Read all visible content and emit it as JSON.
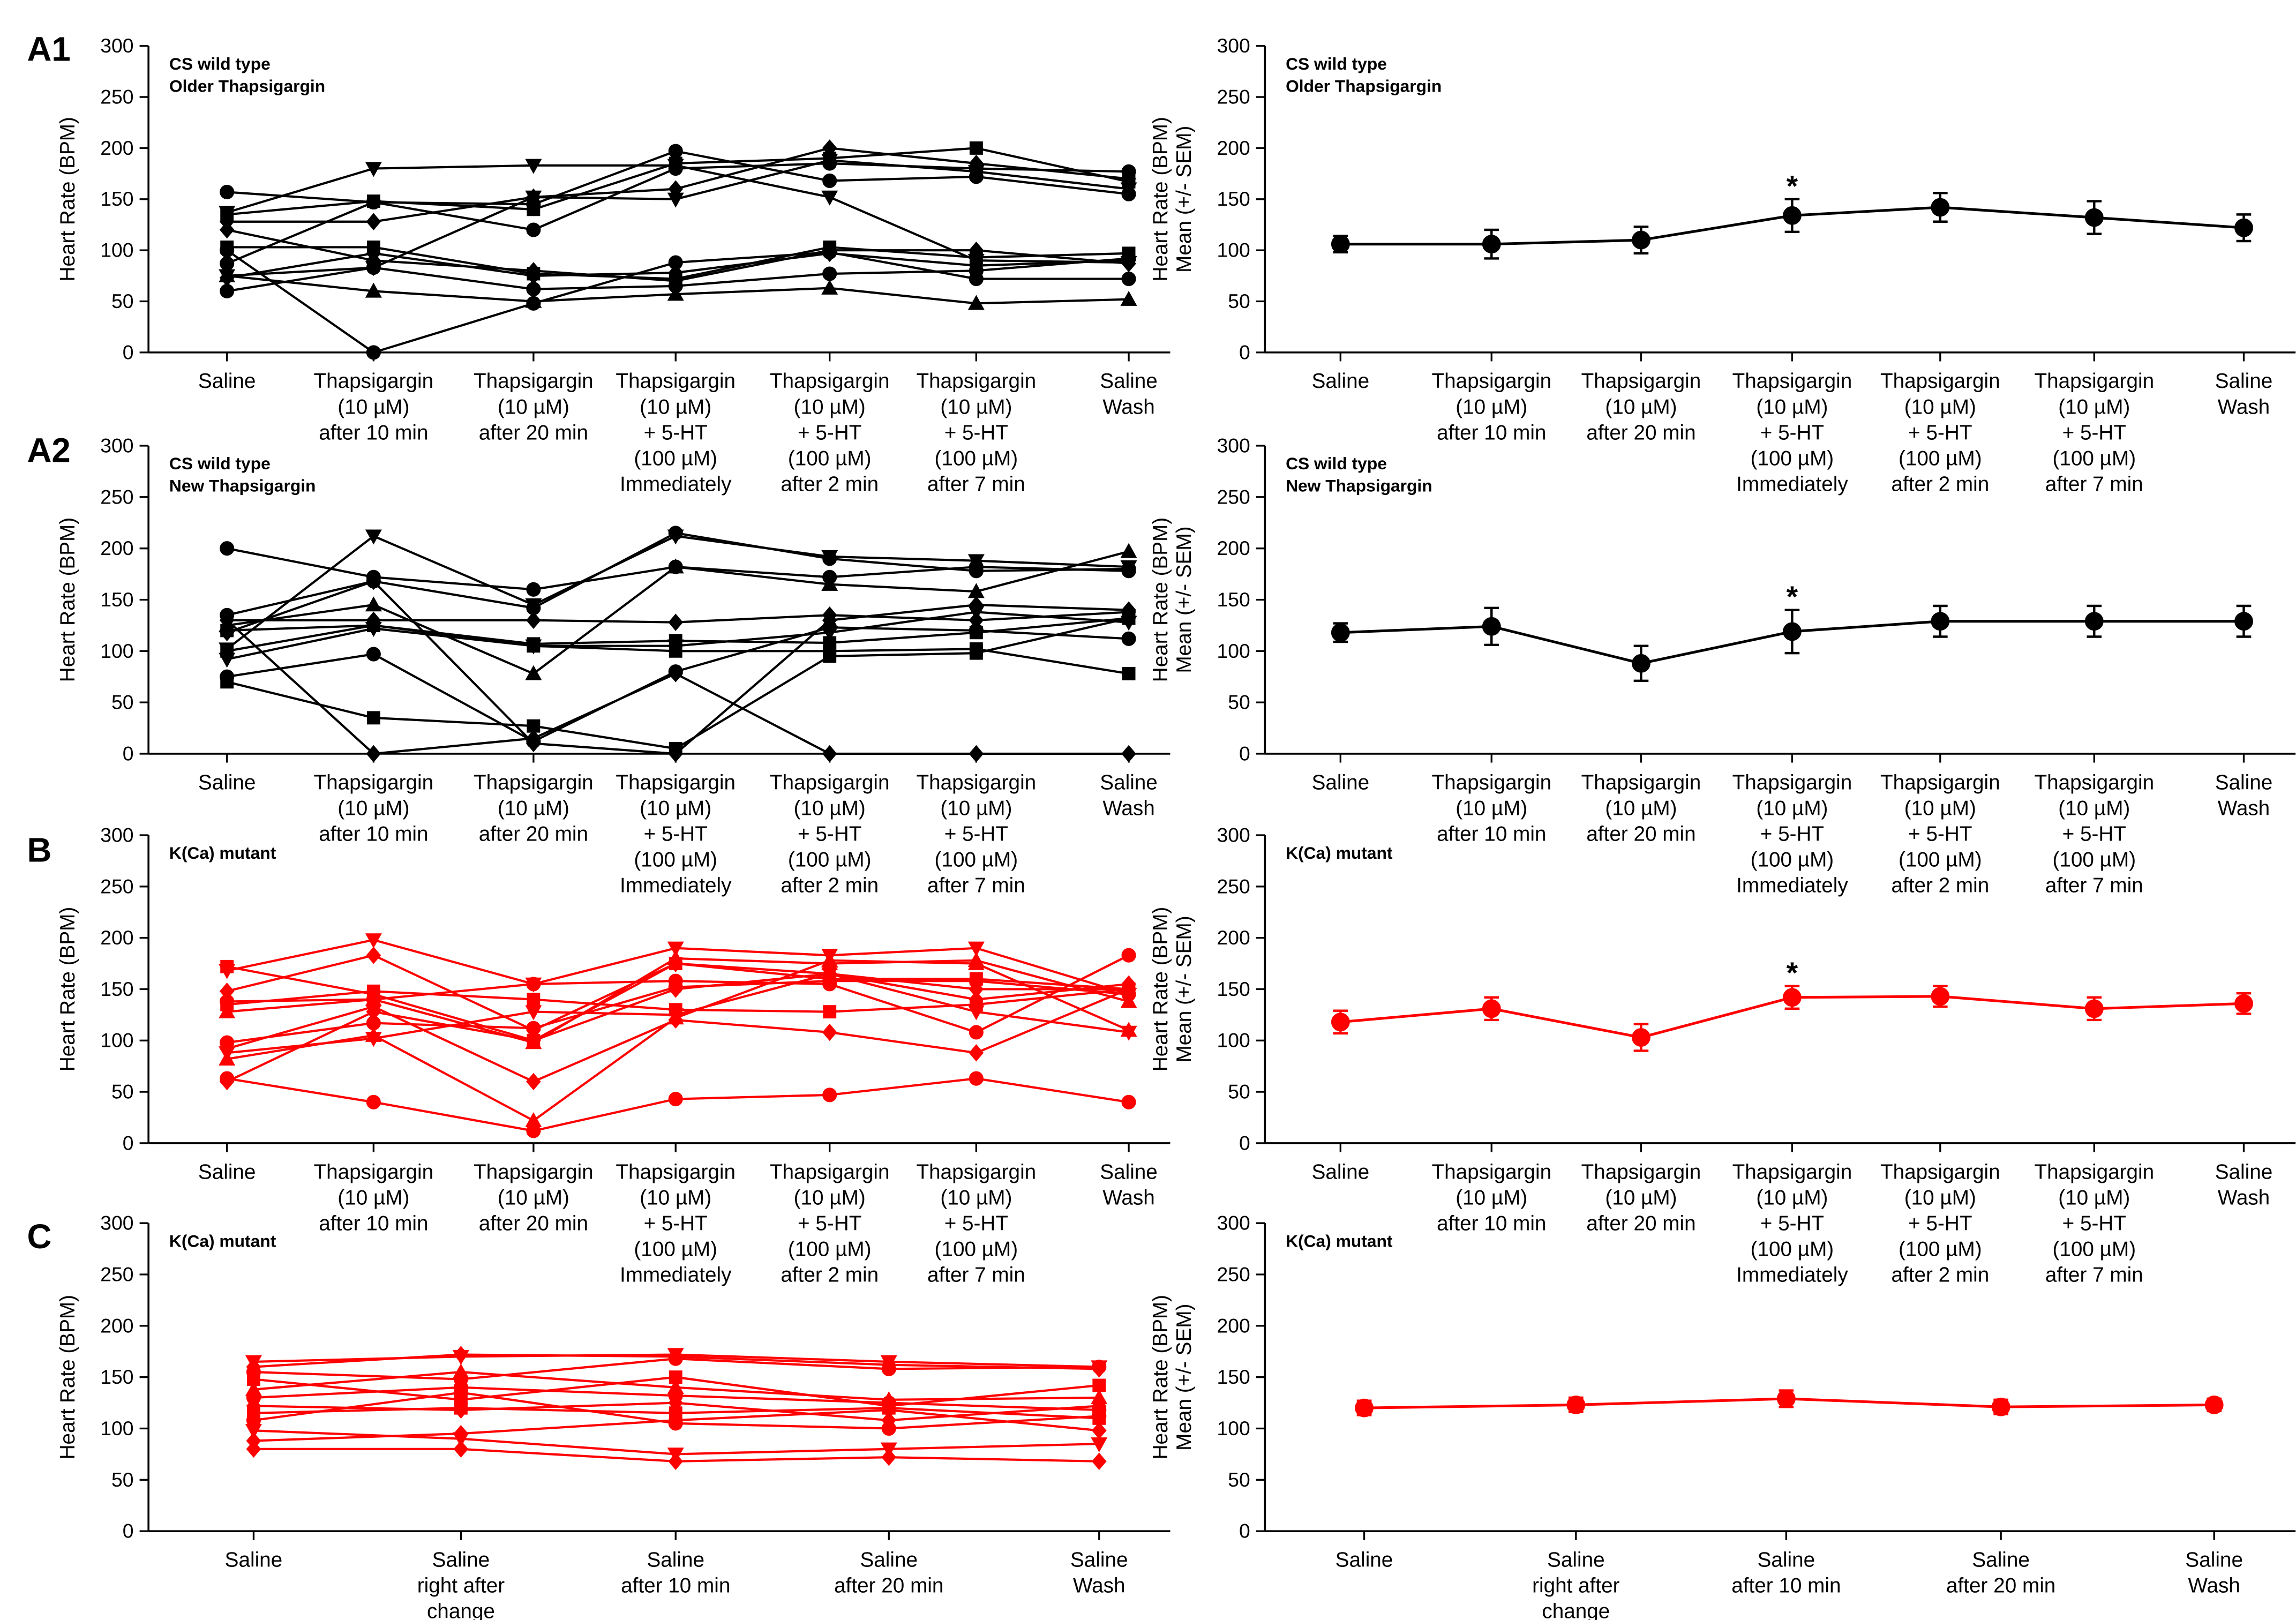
{
  "figure": {
    "ylabel_indiv": "Heart Rate (BPM)",
    "ylabel_mean_line1": "Heart Rate (BPM)",
    "ylabel_mean_line2": "Mean (+/- SEM)"
  },
  "colors": {
    "black": "#000000",
    "red": "#ff0000"
  },
  "chart_data": [
    {
      "panel": "A1",
      "side": "individual",
      "type": "line",
      "color": "black",
      "title": "CS wild type",
      "subtitle": "Older Thapsigargin",
      "ylabel": "Heart Rate (BPM)",
      "ylim": [
        0,
        300
      ],
      "yticks": [
        0,
        50,
        100,
        150,
        200,
        250,
        300
      ],
      "categories": [
        [
          "Saline"
        ],
        [
          "Thapsigargin",
          "(10 µM)",
          "after 10 min"
        ],
        [
          "Thapsigargin",
          "(10 µM)",
          "after 20 min"
        ],
        [
          "Thapsigargin",
          "(10 µM)",
          "+ 5-HT",
          "(100 µM)",
          "Immediately"
        ],
        [
          "Thapsigargin",
          "(10 µM)",
          "+ 5-HT",
          "(100 µM)",
          "after 2 min"
        ],
        [
          "Thapsigargin",
          "(10 µM)",
          "+ 5-HT",
          "(100 µM)",
          "after 7 min"
        ],
        [
          "Saline",
          "Wash"
        ]
      ],
      "series": [
        {
          "marker": "circle",
          "values": [
            157,
            147,
            145,
            197,
            168,
            172,
            155
          ]
        },
        {
          "marker": "triangle-down",
          "values": [
            137,
            180,
            183,
            183,
            152,
            90,
            88
          ]
        },
        {
          "marker": "diamond",
          "values": [
            128,
            128,
            152,
            160,
            200,
            185,
            170
          ]
        },
        {
          "marker": "square",
          "values": [
            135,
            148,
            140,
            185,
            190,
            200,
            167
          ]
        },
        {
          "marker": "circle",
          "values": [
            87,
            147,
            120,
            180,
            185,
            180,
            177
          ]
        },
        {
          "marker": "triangle-down",
          "values": [
            75,
            83,
            152,
            150,
            188,
            177,
            160
          ]
        },
        {
          "marker": "diamond",
          "values": [
            120,
            90,
            80,
            70,
            100,
            100,
            87
          ]
        },
        {
          "marker": "square",
          "values": [
            103,
            103,
            77,
            72,
            103,
            93,
            97
          ]
        },
        {
          "marker": "circle",
          "values": [
            100,
            0,
            48,
            88,
            98,
            72,
            72
          ]
        },
        {
          "marker": "triangle-up",
          "values": [
            75,
            60,
            50,
            57,
            63,
            48,
            52
          ]
        },
        {
          "marker": "circle",
          "values": [
            60,
            83,
            62,
            65,
            77,
            80,
            92
          ]
        },
        {
          "marker": "diamond",
          "values": [
            73,
            97,
            75,
            78,
            97,
            85,
            90
          ]
        }
      ]
    },
    {
      "panel": "A1",
      "side": "mean",
      "type": "line",
      "color": "black",
      "title": "CS wild type",
      "subtitle": "Older Thapsigargin",
      "ylim": [
        0,
        300
      ],
      "yticks": [
        0,
        50,
        100,
        150,
        200,
        250,
        300
      ],
      "categories": [
        [
          "Saline"
        ],
        [
          "Thapsigargin",
          "(10 µM)",
          "after 10 min"
        ],
        [
          "Thapsigargin",
          "(10 µM)",
          "after 20 min"
        ],
        [
          "Thapsigargin",
          "(10 µM)",
          "+ 5-HT",
          "(100 µM)",
          "Immediately"
        ],
        [
          "Thapsigargin",
          "(10 µM)",
          "+ 5-HT",
          "(100 µM)",
          "after 2 min"
        ],
        [
          "Thapsigargin",
          "(10 µM)",
          "+ 5-HT",
          "(100 µM)",
          "after 7 min"
        ],
        [
          "Saline",
          "Wash"
        ]
      ],
      "means": [
        106,
        106,
        110,
        134,
        142,
        132,
        122
      ],
      "sem": [
        8,
        14,
        13,
        16,
        14,
        16,
        13
      ],
      "significance": [
        {
          "index": 3,
          "label": "*"
        }
      ]
    },
    {
      "panel": "A2",
      "side": "individual",
      "type": "line",
      "color": "black",
      "title": "CS wild type",
      "subtitle": "New Thapsigargin",
      "ylabel": "Heart Rate (BPM)",
      "ylim": [
        0,
        300
      ],
      "yticks": [
        0,
        50,
        100,
        150,
        200,
        250,
        300
      ],
      "categories": [
        [
          "Saline"
        ],
        [
          "Thapsigargin",
          "(10 µM)",
          "after 10 min"
        ],
        [
          "Thapsigargin",
          "(10 µM)",
          "after 20 min"
        ],
        [
          "Thapsigargin",
          "(10 µM)",
          "+ 5-HT",
          "(100 µM)",
          "Immediately"
        ],
        [
          "Thapsigargin",
          "(10 µM)",
          "+ 5-HT",
          "(100 µM)",
          "after 2 min"
        ],
        [
          "Thapsigargin",
          "(10 µM)",
          "+ 5-HT",
          "(100 µM)",
          "after 7 min"
        ],
        [
          "Saline",
          "Wash"
        ]
      ],
      "series": [
        {
          "marker": "circle",
          "values": [
            200,
            172,
            160,
            182,
            172,
            182,
            178
          ]
        },
        {
          "marker": "triangle-down",
          "values": [
            102,
            212,
            145,
            212,
            192,
            188,
            182
          ]
        },
        {
          "marker": "circle",
          "values": [
            135,
            168,
            142,
            215,
            190,
            178,
            180
          ]
        },
        {
          "marker": "triangle-up",
          "values": [
            125,
            145,
            78,
            182,
            165,
            158,
            197
          ]
        },
        {
          "marker": "diamond",
          "values": [
            130,
            130,
            130,
            128,
            135,
            130,
            138
          ]
        },
        {
          "marker": "square",
          "values": [
            100,
            125,
            105,
            100,
            100,
            102,
            78
          ]
        },
        {
          "marker": "circle",
          "values": [
            75,
            97,
            12,
            80,
            123,
            120,
            112
          ]
        },
        {
          "marker": "square",
          "values": [
            70,
            35,
            27,
            5,
            95,
            98,
            132
          ]
        },
        {
          "marker": "diamond",
          "values": [
            130,
            0,
            15,
            78,
            0,
            0,
            0
          ]
        },
        {
          "marker": "triangle-down",
          "values": [
            92,
            122,
            105,
            105,
            118,
            138,
            128
          ]
        },
        {
          "marker": "diamond",
          "values": [
            118,
            168,
            10,
            0,
            130,
            145,
            140
          ]
        },
        {
          "marker": "square",
          "values": [
            120,
            125,
            107,
            110,
            108,
            118,
            132
          ]
        }
      ]
    },
    {
      "panel": "A2",
      "side": "mean",
      "type": "line",
      "color": "black",
      "title": "CS wild type",
      "subtitle": "New Thapsigargin",
      "ylim": [
        0,
        300
      ],
      "yticks": [
        0,
        50,
        100,
        150,
        200,
        250,
        300
      ],
      "categories": [
        [
          "Saline"
        ],
        [
          "Thapsigargin",
          "(10 µM)",
          "after 10 min"
        ],
        [
          "Thapsigargin",
          "(10 µM)",
          "after 20 min"
        ],
        [
          "Thapsigargin",
          "(10 µM)",
          "+ 5-HT",
          "(100 µM)",
          "Immediately"
        ],
        [
          "Thapsigargin",
          "(10 µM)",
          "+ 5-HT",
          "(100 µM)",
          "after 2 min"
        ],
        [
          "Thapsigargin",
          "(10 µM)",
          "+ 5-HT",
          "(100 µM)",
          "after 7 min"
        ],
        [
          "Saline",
          "Wash"
        ]
      ],
      "means": [
        118,
        124,
        88,
        119,
        129,
        129,
        129
      ],
      "sem": [
        9,
        18,
        17,
        21,
        15,
        15,
        15
      ],
      "significance": [
        {
          "index": 3,
          "label": "*"
        }
      ]
    },
    {
      "panel": "B",
      "side": "individual",
      "type": "line",
      "color": "red",
      "title": "K(Ca) mutant",
      "subtitle": "",
      "ylabel": "Heart Rate (BPM)",
      "ylim": [
        0,
        300
      ],
      "yticks": [
        0,
        50,
        100,
        150,
        200,
        250,
        300
      ],
      "categories": [
        [
          "Saline"
        ],
        [
          "Thapsigargin",
          "(10 µM)",
          "after 10 min"
        ],
        [
          "Thapsigargin",
          "(10 µM)",
          "after 20 min"
        ],
        [
          "Thapsigargin",
          "(10 µM)",
          "+ 5-HT",
          "(100 µM)",
          "Immediately"
        ],
        [
          "Thapsigargin",
          "(10 µM)",
          "+ 5-HT",
          "(100 µM)",
          "after 2 min"
        ],
        [
          "Thapsigargin",
          "(10 µM)",
          "+ 5-HT",
          "(100 µM)",
          "after 7 min"
        ],
        [
          "Saline",
          "Wash"
        ]
      ],
      "series": [
        {
          "marker": "square",
          "values": [
            172,
            145,
            100,
            175,
            160,
            160,
            150
          ]
        },
        {
          "marker": "triangle-down",
          "values": [
            168,
            198,
            155,
            190,
            183,
            190,
            145
          ]
        },
        {
          "marker": "diamond",
          "values": [
            148,
            183,
            110,
            175,
            165,
            140,
            155
          ]
        },
        {
          "marker": "circle",
          "values": [
            138,
            140,
            155,
            158,
            155,
            108,
            183
          ]
        },
        {
          "marker": "triangle-up",
          "values": [
            128,
            140,
            98,
            180,
            175,
            178,
            138
          ]
        },
        {
          "marker": "square",
          "values": [
            135,
            148,
            140,
            130,
            128,
            135,
            150
          ]
        },
        {
          "marker": "diamond",
          "values": [
            92,
            133,
            60,
            120,
            108,
            88,
            150
          ]
        },
        {
          "marker": "circle",
          "values": [
            98,
            117,
            112,
            152,
            158,
            158,
            145
          ]
        },
        {
          "marker": "triangle-up",
          "values": [
            82,
            105,
            22,
            122,
            178,
            175,
            110
          ]
        },
        {
          "marker": "circle",
          "values": [
            63,
            40,
            12,
            43,
            47,
            63,
            40
          ]
        },
        {
          "marker": "diamond",
          "values": [
            60,
            128,
            100,
            150,
            165,
            150,
            150
          ]
        },
        {
          "marker": "triangle-down",
          "values": [
            88,
            102,
            128,
            125,
            165,
            128,
            108
          ]
        }
      ]
    },
    {
      "panel": "B",
      "side": "mean",
      "type": "line",
      "color": "red",
      "title": "K(Ca) mutant",
      "subtitle": "",
      "ylim": [
        0,
        300
      ],
      "yticks": [
        0,
        50,
        100,
        150,
        200,
        250,
        300
      ],
      "categories": [
        [
          "Saline"
        ],
        [
          "Thapsigargin",
          "(10 µM)",
          "after 10 min"
        ],
        [
          "Thapsigargin",
          "(10 µM)",
          "after 20 min"
        ],
        [
          "Thapsigargin",
          "(10 µM)",
          "+ 5-HT",
          "(100 µM)",
          "Immediately"
        ],
        [
          "Thapsigargin",
          "(10 µM)",
          "+ 5-HT",
          "(100 µM)",
          "after 2 min"
        ],
        [
          "Thapsigargin",
          "(10 µM)",
          "+ 5-HT",
          "(100 µM)",
          "after 7 min"
        ],
        [
          "Saline",
          "Wash"
        ]
      ],
      "means": [
        118,
        131,
        103,
        142,
        143,
        131,
        136
      ],
      "sem": [
        11,
        11,
        13,
        11,
        10,
        11,
        10
      ],
      "significance": [
        {
          "index": 3,
          "label": "*"
        }
      ]
    },
    {
      "panel": "C",
      "side": "individual",
      "type": "line",
      "color": "red",
      "title": "K(Ca) mutant",
      "subtitle": "",
      "ylabel": "Heart Rate (BPM)",
      "ylim": [
        0,
        300
      ],
      "yticks": [
        0,
        50,
        100,
        150,
        200,
        250,
        300
      ],
      "categories": [
        [
          "Saline"
        ],
        [
          "Saline",
          "right after",
          "change"
        ],
        [
          "Saline",
          "after 10 min"
        ],
        [
          "Saline",
          "after 20 min"
        ],
        [
          "Saline",
          "Wash"
        ]
      ],
      "series": [
        {
          "marker": "triangle-down",
          "values": [
            165,
            170,
            172,
            165,
            160
          ]
        },
        {
          "marker": "diamond",
          "values": [
            160,
            172,
            170,
            162,
            158
          ]
        },
        {
          "marker": "circle",
          "values": [
            155,
            148,
            168,
            158,
            160
          ]
        },
        {
          "marker": "square",
          "values": [
            148,
            128,
            150,
            122,
            142
          ]
        },
        {
          "marker": "triangle-up",
          "values": [
            138,
            155,
            140,
            128,
            130
          ]
        },
        {
          "marker": "circle",
          "values": [
            130,
            140,
            132,
            125,
            118
          ]
        },
        {
          "marker": "diamond",
          "values": [
            122,
            118,
            125,
            108,
            122
          ]
        },
        {
          "marker": "square",
          "values": [
            115,
            120,
            115,
            120,
            110
          ]
        },
        {
          "marker": "circle",
          "values": [
            108,
            135,
            105,
            100,
            112
          ]
        },
        {
          "marker": "triangle-down",
          "values": [
            98,
            90,
            75,
            80,
            85
          ]
        },
        {
          "marker": "diamond",
          "values": [
            88,
            95,
            108,
            118,
            98
          ]
        },
        {
          "marker": "diamond",
          "values": [
            80,
            80,
            68,
            72,
            68
          ]
        }
      ]
    },
    {
      "panel": "C",
      "side": "mean",
      "type": "line",
      "color": "red",
      "title": "K(Ca) mutant",
      "subtitle": "",
      "ylim": [
        0,
        300
      ],
      "yticks": [
        0,
        50,
        100,
        150,
        200,
        250,
        300
      ],
      "categories": [
        [
          "Saline"
        ],
        [
          "Saline",
          "right after",
          "change"
        ],
        [
          "Saline",
          "after 10 min"
        ],
        [
          "Saline",
          "after 20 min"
        ],
        [
          "Saline",
          "Wash"
        ]
      ],
      "means": [
        120,
        123,
        129,
        121,
        123
      ],
      "sem": [
        7,
        7,
        8,
        7,
        6
      ],
      "significance": []
    }
  ]
}
